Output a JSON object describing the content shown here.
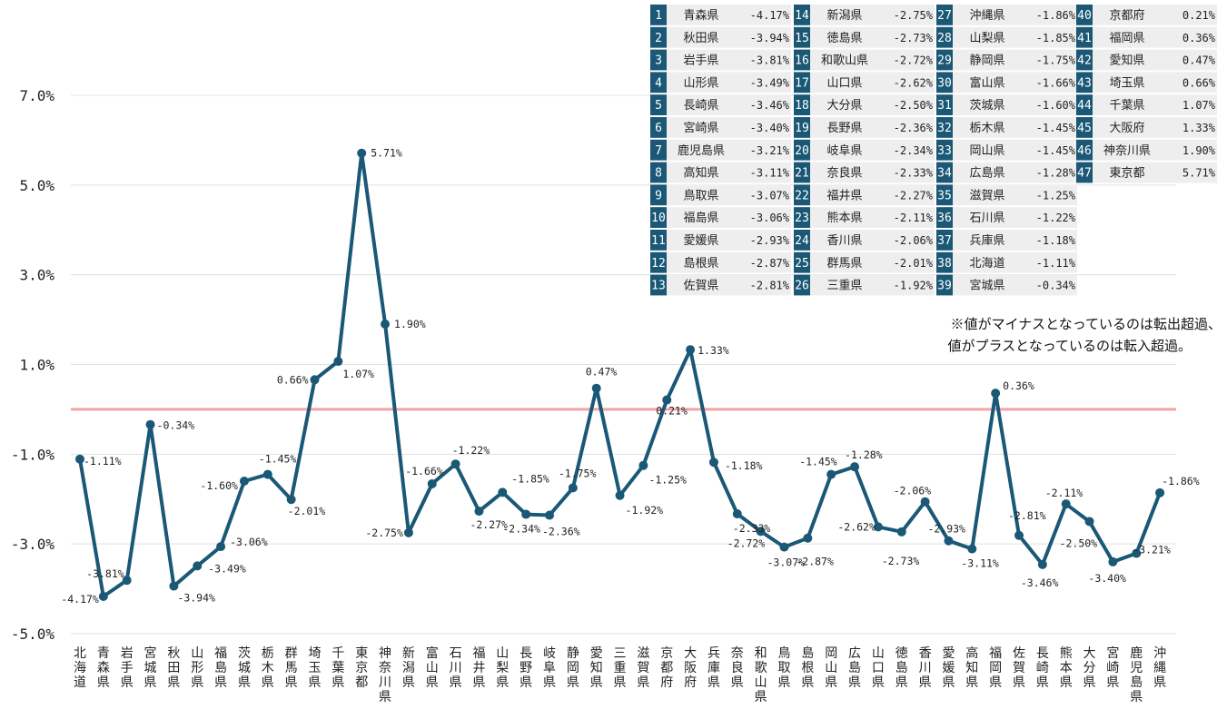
{
  "colors": {
    "line": "#1a5876",
    "zero_line": "#f3a3a5",
    "grid": "#e1e1e1",
    "rank_num_bg": "#1a5876",
    "rank_row_bg": "#eeeeee"
  },
  "note": {
    "line1": "※値がマイナスとなっているのは転出超過、",
    "line2": "値がプラスとなっているのは転入超過。"
  },
  "chart_data": {
    "type": "line",
    "title": "",
    "xlabel": "",
    "ylabel": "",
    "ylim": [
      -5.0,
      7.0
    ],
    "yticks": [
      -5.0,
      -3.0,
      -1.0,
      1.0,
      3.0,
      5.0,
      7.0
    ],
    "ytick_labels": [
      "-5.0%",
      "-3.0%",
      "-1.0%",
      "1.0%",
      "3.0%",
      "5.0%",
      "7.0%"
    ],
    "grid": true,
    "reference_line": 0,
    "categories": [
      "北海道",
      "青森県",
      "岩手県",
      "宮城県",
      "秋田県",
      "山形県",
      "福島県",
      "茨城県",
      "栃木県",
      "群馬県",
      "埼玉県",
      "千葉県",
      "東京都",
      "神奈川県",
      "新潟県",
      "富山県",
      "石川県",
      "福井県",
      "山梨県",
      "長野県",
      "岐阜県",
      "静岡県",
      "愛知県",
      "三重県",
      "滋賀県",
      "京都府",
      "大阪府",
      "兵庫県",
      "奈良県",
      "和歌山県",
      "鳥取県",
      "島根県",
      "岡山県",
      "広島県",
      "山口県",
      "徳島県",
      "香川県",
      "愛媛県",
      "高知県",
      "福岡県",
      "佐賀県",
      "長崎県",
      "熊本県",
      "大分県",
      "宮崎県",
      "鹿児島県",
      "沖縄県"
    ],
    "values": [
      -1.11,
      -4.17,
      -3.81,
      -0.34,
      -3.94,
      -3.49,
      -3.06,
      -1.6,
      -1.45,
      -2.01,
      0.66,
      1.07,
      5.71,
      1.9,
      -2.75,
      -1.66,
      -1.22,
      -2.27,
      -1.85,
      -2.34,
      -2.36,
      -1.75,
      0.47,
      -1.92,
      -1.25,
      0.21,
      1.33,
      -1.18,
      -2.33,
      -2.72,
      -3.07,
      -2.87,
      -1.45,
      -1.28,
      -2.62,
      -2.73,
      -2.06,
      -2.93,
      -3.11,
      0.36,
      -2.81,
      -3.46,
      -2.11,
      -2.5,
      -3.4,
      -3.21,
      -1.86
    ],
    "data_labels": [
      "-1.11%",
      "-4.17%",
      "-3.81%",
      "-0.34%",
      "-3.94%",
      "-3.49%",
      "-3.06%",
      "-1.60%",
      "-1.45%",
      "-2.01%",
      "0.66%",
      "1.07%",
      "5.71%",
      "1.90%",
      "-2.75%",
      "-1.66%",
      "-1.22%",
      "-2.27%",
      "-1.85%",
      "-2.34%",
      "-2.36%",
      "-1.75%",
      "0.47%",
      "-1.92%",
      "-1.25%",
      "0.21%",
      "1.33%",
      "-1.18%",
      "-2.33%",
      "-2.72%",
      "-3.07%",
      "-2.87%",
      "-1.45%",
      "-1.28%",
      "-2.62%",
      "-2.73%",
      "-2.06%",
      "-2.93%",
      "-3.11%",
      "0.36%",
      "-2.81%",
      "-3.46%",
      "-2.11%",
      "-2.50%",
      "-3.40%",
      "-3.21%",
      "-1.86%"
    ],
    "ranking": [
      {
        "rank": "1",
        "name": "青森県",
        "value": "-4.17%"
      },
      {
        "rank": "2",
        "name": "秋田県",
        "value": "-3.94%"
      },
      {
        "rank": "3",
        "name": "岩手県",
        "value": "-3.81%"
      },
      {
        "rank": "4",
        "name": "山形県",
        "value": "-3.49%"
      },
      {
        "rank": "5",
        "name": "長崎県",
        "value": "-3.46%"
      },
      {
        "rank": "6",
        "name": "宮崎県",
        "value": "-3.40%"
      },
      {
        "rank": "7",
        "name": "鹿児島県",
        "value": "-3.21%"
      },
      {
        "rank": "8",
        "name": "高知県",
        "value": "-3.11%"
      },
      {
        "rank": "9",
        "name": "鳥取県",
        "value": "-3.07%"
      },
      {
        "rank": "10",
        "name": "福島県",
        "value": "-3.06%"
      },
      {
        "rank": "11",
        "name": "愛媛県",
        "value": "-2.93%"
      },
      {
        "rank": "12",
        "name": "島根県",
        "value": "-2.87%"
      },
      {
        "rank": "13",
        "name": "佐賀県",
        "value": "-2.81%"
      },
      {
        "rank": "14",
        "name": "新潟県",
        "value": "-2.75%"
      },
      {
        "rank": "15",
        "name": "徳島県",
        "value": "-2.73%"
      },
      {
        "rank": "16",
        "name": "和歌山県",
        "value": "-2.72%"
      },
      {
        "rank": "17",
        "name": "山口県",
        "value": "-2.62%"
      },
      {
        "rank": "18",
        "name": "大分県",
        "value": "-2.50%"
      },
      {
        "rank": "19",
        "name": "長野県",
        "value": "-2.36%"
      },
      {
        "rank": "20",
        "name": "岐阜県",
        "value": "-2.34%"
      },
      {
        "rank": "21",
        "name": "奈良県",
        "value": "-2.33%"
      },
      {
        "rank": "22",
        "name": "福井県",
        "value": "-2.27%"
      },
      {
        "rank": "23",
        "name": "熊本県",
        "value": "-2.11%"
      },
      {
        "rank": "24",
        "name": "香川県",
        "value": "-2.06%"
      },
      {
        "rank": "25",
        "name": "群馬県",
        "value": "-2.01%"
      },
      {
        "rank": "26",
        "name": "三重県",
        "value": "-1.92%"
      },
      {
        "rank": "27",
        "name": "沖縄県",
        "value": "-1.86%"
      },
      {
        "rank": "28",
        "name": "山梨県",
        "value": "-1.85%"
      },
      {
        "rank": "29",
        "name": "静岡県",
        "value": "-1.75%"
      },
      {
        "rank": "30",
        "name": "富山県",
        "value": "-1.66%"
      },
      {
        "rank": "31",
        "name": "茨城県",
        "value": "-1.60%"
      },
      {
        "rank": "32",
        "name": "栃木県",
        "value": "-1.45%"
      },
      {
        "rank": "33",
        "name": "岡山県",
        "value": "-1.45%"
      },
      {
        "rank": "34",
        "name": "広島県",
        "value": "-1.28%"
      },
      {
        "rank": "35",
        "name": "滋賀県",
        "value": "-1.25%"
      },
      {
        "rank": "36",
        "name": "石川県",
        "value": "-1.22%"
      },
      {
        "rank": "37",
        "name": "兵庫県",
        "value": "-1.18%"
      },
      {
        "rank": "38",
        "name": "北海道",
        "value": "-1.11%"
      },
      {
        "rank": "39",
        "name": "宮城県",
        "value": "-0.34%"
      },
      {
        "rank": "40",
        "name": "京都府",
        "value": "0.21%"
      },
      {
        "rank": "41",
        "name": "福岡県",
        "value": "0.36%"
      },
      {
        "rank": "42",
        "name": "愛知県",
        "value": "0.47%"
      },
      {
        "rank": "43",
        "name": "埼玉県",
        "value": "0.66%"
      },
      {
        "rank": "44",
        "name": "千葉県",
        "value": "1.07%"
      },
      {
        "rank": "45",
        "name": "大阪府",
        "value": "1.33%"
      },
      {
        "rank": "46",
        "name": "神奈川県",
        "value": "1.90%"
      },
      {
        "rank": "47",
        "name": "東京都",
        "value": "5.71%"
      }
    ]
  }
}
